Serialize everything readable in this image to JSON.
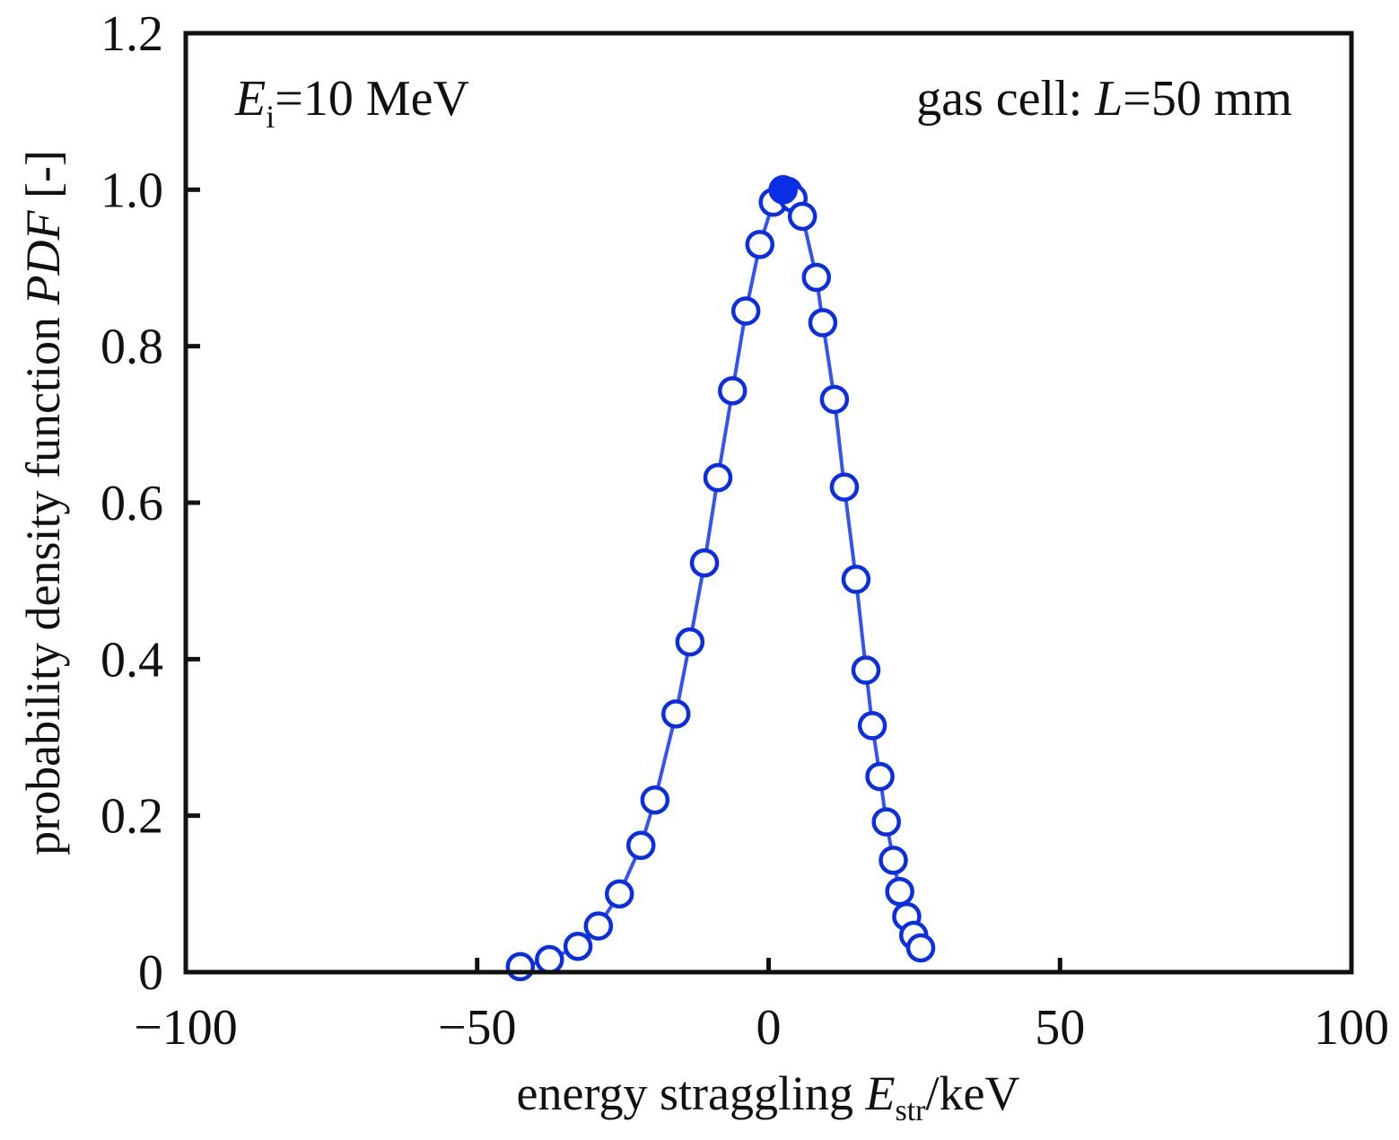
{
  "chart_data": {
    "type": "line",
    "title": "",
    "xlabel": {
      "prefix": "energy straggling ",
      "var": "E",
      "sub": "str",
      "suffix": "/keV"
    },
    "ylabel": {
      "prefix": "probability density function ",
      "var": "PDF",
      "suffix": " [-]"
    },
    "xlim": [
      -100,
      100
    ],
    "ylim": [
      0,
      1.2
    ],
    "xticks": [
      -100,
      -50,
      0,
      50,
      100
    ],
    "xtick_labels": [
      "−100",
      "−50",
      "0",
      "50",
      "100"
    ],
    "yticks": [
      0,
      0.2,
      0.4,
      0.6,
      0.8,
      1.0,
      1.2
    ],
    "ytick_labels": [
      "0",
      "0.2",
      "0.4",
      "0.6",
      "0.8",
      "1.0",
      "1.2"
    ],
    "grid": false,
    "annotations": {
      "left": {
        "var": "E",
        "sub": "i",
        "text": "=10 MeV"
      },
      "right": {
        "prefix": "gas cell: ",
        "var": "L",
        "text": "=50 mm"
      }
    },
    "series": [
      {
        "name": "PDF",
        "color": "#0a2ee6",
        "line_color": "#3355ee",
        "marker": "open-circle",
        "x": [
          -42.6,
          -37.6,
          -32.7,
          -29.2,
          -25.6,
          -21.9,
          -19.5,
          -15.9,
          -13.5,
          -11.0,
          -8.7,
          -6.2,
          -3.9,
          -1.5,
          0.8,
          2.5,
          3.3,
          4.2,
          5.8,
          8.2,
          9.3,
          11.3,
          13.0,
          15.0,
          16.7,
          17.8,
          19.1,
          20.2,
          21.4,
          22.5,
          23.7,
          24.9,
          26.1
        ],
        "y": [
          0.007,
          0.016,
          0.033,
          0.059,
          0.1,
          0.162,
          0.22,
          0.33,
          0.422,
          0.523,
          0.632,
          0.743,
          0.845,
          0.93,
          0.984,
          1.0,
          0.998,
          0.989,
          0.966,
          0.888,
          0.83,
          0.732,
          0.62,
          0.502,
          0.386,
          0.315,
          0.25,
          0.192,
          0.143,
          0.103,
          0.071,
          0.047,
          0.031
        ],
        "filled_index": 15
      }
    ]
  }
}
